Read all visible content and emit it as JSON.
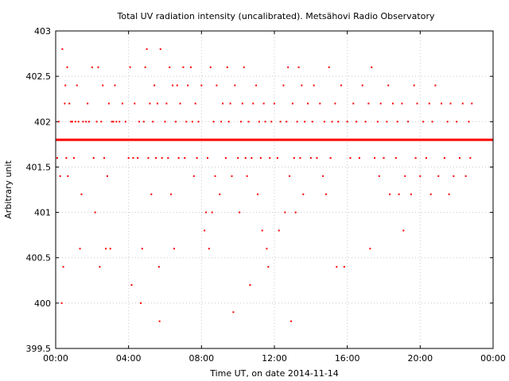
{
  "chart_data": {
    "type": "scatter",
    "title": "Total UV radiation intensity (uncalibrated). Metsähovi Radio Observatory",
    "xlabel": "Time UT, on date 2014-11-14",
    "ylabel": "Arbitrary unit",
    "xlim": [
      "00:00",
      "24:00"
    ],
    "ylim": [
      399.5,
      403
    ],
    "x_ticks": [
      "00:00",
      "04:00",
      "08:00",
      "12:00",
      "16:00",
      "20:00",
      "00:00"
    ],
    "y_ticks": [
      "399.5",
      "400",
      "400.5",
      "401",
      "401.5",
      "402",
      "402.5",
      "403"
    ],
    "grid": true,
    "marker_color": "#ff0000",
    "series": [
      {
        "baseline_value": 401.8,
        "baseline_span": [
          "00:00",
          "24:00"
        ],
        "points": [
          [
            "00:05",
            401.6
          ],
          [
            "00:10",
            402.0
          ],
          [
            "00:15",
            401.4
          ],
          [
            "00:20",
            400.0
          ],
          [
            "00:22",
            402.8
          ],
          [
            "00:25",
            400.4
          ],
          [
            "00:30",
            402.2
          ],
          [
            "00:32",
            402.4
          ],
          [
            "00:35",
            401.6
          ],
          [
            "00:38",
            402.6
          ],
          [
            "00:40",
            401.4
          ],
          [
            "00:45",
            402.2
          ],
          [
            "00:50",
            402.0
          ],
          [
            "00:55",
            402.0
          ],
          [
            "01:00",
            401.6
          ],
          [
            "01:05",
            402.0
          ],
          [
            "01:10",
            402.4
          ],
          [
            "01:15",
            402.0
          ],
          [
            "01:20",
            400.6
          ],
          [
            "01:25",
            401.2
          ],
          [
            "01:30",
            402.0
          ],
          [
            "01:40",
            402.0
          ],
          [
            "01:45",
            402.2
          ],
          [
            "01:50",
            402.0
          ],
          [
            "02:00",
            402.6
          ],
          [
            "02:05",
            401.6
          ],
          [
            "02:10",
            401.0
          ],
          [
            "02:15",
            402.0
          ],
          [
            "02:20",
            402.6
          ],
          [
            "02:25",
            400.4
          ],
          [
            "02:30",
            402.0
          ],
          [
            "02:35",
            402.4
          ],
          [
            "02:40",
            401.6
          ],
          [
            "02:45",
            400.6
          ],
          [
            "02:50",
            401.4
          ],
          [
            "02:55",
            402.2
          ],
          [
            "03:00",
            400.6
          ],
          [
            "03:05",
            402.0
          ],
          [
            "03:10",
            402.0
          ],
          [
            "03:15",
            402.4
          ],
          [
            "03:20",
            402.0
          ],
          [
            "03:30",
            402.0
          ],
          [
            "03:40",
            402.2
          ],
          [
            "03:50",
            402.0
          ],
          [
            "04:00",
            401.6
          ],
          [
            "04:05",
            402.6
          ],
          [
            "04:10",
            400.2
          ],
          [
            "04:15",
            401.6
          ],
          [
            "04:20",
            402.2
          ],
          [
            "04:30",
            401.6
          ],
          [
            "04:35",
            402.0
          ],
          [
            "04:40",
            400.0
          ],
          [
            "04:45",
            400.6
          ],
          [
            "04:50",
            402.0
          ],
          [
            "04:55",
            402.6
          ],
          [
            "05:00",
            402.8
          ],
          [
            "05:05",
            401.6
          ],
          [
            "05:10",
            402.2
          ],
          [
            "05:15",
            401.2
          ],
          [
            "05:20",
            402.0
          ],
          [
            "05:25",
            402.4
          ],
          [
            "05:30",
            401.6
          ],
          [
            "05:35",
            402.2
          ],
          [
            "05:40",
            400.4
          ],
          [
            "05:42",
            399.8
          ],
          [
            "05:45",
            402.8
          ],
          [
            "05:50",
            401.6
          ],
          [
            "06:00",
            402.0
          ],
          [
            "06:05",
            402.2
          ],
          [
            "06:10",
            401.6
          ],
          [
            "06:15",
            402.6
          ],
          [
            "06:20",
            401.2
          ],
          [
            "06:25",
            402.4
          ],
          [
            "06:30",
            400.6
          ],
          [
            "06:35",
            402.0
          ],
          [
            "06:40",
            402.4
          ],
          [
            "06:45",
            401.6
          ],
          [
            "06:50",
            402.2
          ],
          [
            "07:00",
            402.6
          ],
          [
            "07:05",
            401.6
          ],
          [
            "07:10",
            402.0
          ],
          [
            "07:15",
            402.4
          ],
          [
            "07:20",
            401.8
          ],
          [
            "07:25",
            402.6
          ],
          [
            "07:30",
            402.0
          ],
          [
            "07:35",
            401.4
          ],
          [
            "07:40",
            402.2
          ],
          [
            "07:45",
            401.6
          ],
          [
            "07:50",
            402.0
          ],
          [
            "08:00",
            402.4
          ],
          [
            "08:10",
            400.8
          ],
          [
            "08:15",
            401.0
          ],
          [
            "08:20",
            401.6
          ],
          [
            "08:25",
            400.6
          ],
          [
            "08:30",
            402.6
          ],
          [
            "08:35",
            401.0
          ],
          [
            "08:40",
            402.0
          ],
          [
            "08:45",
            401.4
          ],
          [
            "08:50",
            402.4
          ],
          [
            "09:00",
            401.2
          ],
          [
            "09:05",
            402.0
          ],
          [
            "09:10",
            402.2
          ],
          [
            "09:20",
            401.6
          ],
          [
            "09:25",
            402.6
          ],
          [
            "09:30",
            402.0
          ],
          [
            "09:35",
            402.2
          ],
          [
            "09:40",
            401.4
          ],
          [
            "09:45",
            399.9
          ],
          [
            "09:50",
            402.4
          ],
          [
            "10:00",
            401.6
          ],
          [
            "10:05",
            401.0
          ],
          [
            "10:10",
            402.0
          ],
          [
            "10:15",
            402.2
          ],
          [
            "10:20",
            402.6
          ],
          [
            "10:25",
            401.6
          ],
          [
            "10:30",
            401.4
          ],
          [
            "10:35",
            402.0
          ],
          [
            "10:40",
            400.2
          ],
          [
            "10:45",
            401.6
          ],
          [
            "10:50",
            402.2
          ],
          [
            "11:00",
            402.4
          ],
          [
            "11:05",
            401.2
          ],
          [
            "11:10",
            402.0
          ],
          [
            "11:15",
            401.6
          ],
          [
            "11:20",
            400.8
          ],
          [
            "11:25",
            402.2
          ],
          [
            "11:30",
            402.0
          ],
          [
            "11:35",
            400.6
          ],
          [
            "11:40",
            400.4
          ],
          [
            "11:45",
            401.6
          ],
          [
            "11:50",
            402.0
          ],
          [
            "12:00",
            402.2
          ],
          [
            "12:10",
            401.6
          ],
          [
            "12:15",
            400.8
          ],
          [
            "12:20",
            402.0
          ],
          [
            "12:30",
            402.4
          ],
          [
            "12:35",
            401.0
          ],
          [
            "12:40",
            402.0
          ],
          [
            "12:45",
            402.6
          ],
          [
            "12:50",
            401.4
          ],
          [
            "12:55",
            399.8
          ],
          [
            "13:00",
            402.2
          ],
          [
            "13:05",
            401.6
          ],
          [
            "13:10",
            401.0
          ],
          [
            "13:15",
            402.0
          ],
          [
            "13:20",
            402.6
          ],
          [
            "13:25",
            401.6
          ],
          [
            "13:30",
            402.4
          ],
          [
            "13:35",
            401.2
          ],
          [
            "13:40",
            402.0
          ],
          [
            "13:50",
            402.2
          ],
          [
            "14:00",
            401.6
          ],
          [
            "14:05",
            402.0
          ],
          [
            "14:10",
            402.4
          ],
          [
            "14:20",
            401.6
          ],
          [
            "14:30",
            402.2
          ],
          [
            "14:40",
            401.4
          ],
          [
            "14:45",
            402.0
          ],
          [
            "14:50",
            401.2
          ],
          [
            "15:00",
            402.6
          ],
          [
            "15:05",
            401.6
          ],
          [
            "15:10",
            402.0
          ],
          [
            "15:20",
            402.2
          ],
          [
            "15:25",
            400.4
          ],
          [
            "15:30",
            402.0
          ],
          [
            "15:40",
            402.4
          ],
          [
            "15:50",
            400.4
          ],
          [
            "16:00",
            402.0
          ],
          [
            "16:10",
            401.6
          ],
          [
            "16:20",
            402.2
          ],
          [
            "16:30",
            402.0
          ],
          [
            "16:40",
            401.6
          ],
          [
            "16:50",
            402.4
          ],
          [
            "17:00",
            402.0
          ],
          [
            "17:10",
            402.2
          ],
          [
            "17:15",
            400.6
          ],
          [
            "17:20",
            402.6
          ],
          [
            "17:30",
            401.6
          ],
          [
            "17:40",
            402.0
          ],
          [
            "17:45",
            401.4
          ],
          [
            "17:50",
            402.2
          ],
          [
            "18:00",
            401.6
          ],
          [
            "18:10",
            402.0
          ],
          [
            "18:15",
            402.4
          ],
          [
            "18:20",
            401.2
          ],
          [
            "18:30",
            402.2
          ],
          [
            "18:40",
            401.6
          ],
          [
            "18:45",
            402.0
          ],
          [
            "18:50",
            401.2
          ],
          [
            "19:00",
            402.2
          ],
          [
            "19:05",
            400.8
          ],
          [
            "19:10",
            401.4
          ],
          [
            "19:20",
            402.0
          ],
          [
            "19:30",
            401.2
          ],
          [
            "19:40",
            402.4
          ],
          [
            "19:45",
            401.6
          ],
          [
            "19:50",
            402.2
          ],
          [
            "20:00",
            401.4
          ],
          [
            "20:10",
            402.0
          ],
          [
            "20:20",
            401.6
          ],
          [
            "20:30",
            402.2
          ],
          [
            "20:35",
            401.2
          ],
          [
            "20:40",
            402.0
          ],
          [
            "20:50",
            402.4
          ],
          [
            "21:00",
            401.4
          ],
          [
            "21:10",
            402.2
          ],
          [
            "21:20",
            401.6
          ],
          [
            "21:30",
            402.0
          ],
          [
            "21:35",
            401.2
          ],
          [
            "21:40",
            402.2
          ],
          [
            "21:50",
            401.4
          ],
          [
            "22:00",
            402.0
          ],
          [
            "22:10",
            401.6
          ],
          [
            "22:20",
            402.2
          ],
          [
            "22:30",
            401.4
          ],
          [
            "22:40",
            402.0
          ],
          [
            "22:45",
            401.6
          ],
          [
            "22:50",
            402.2
          ]
        ]
      }
    ]
  }
}
